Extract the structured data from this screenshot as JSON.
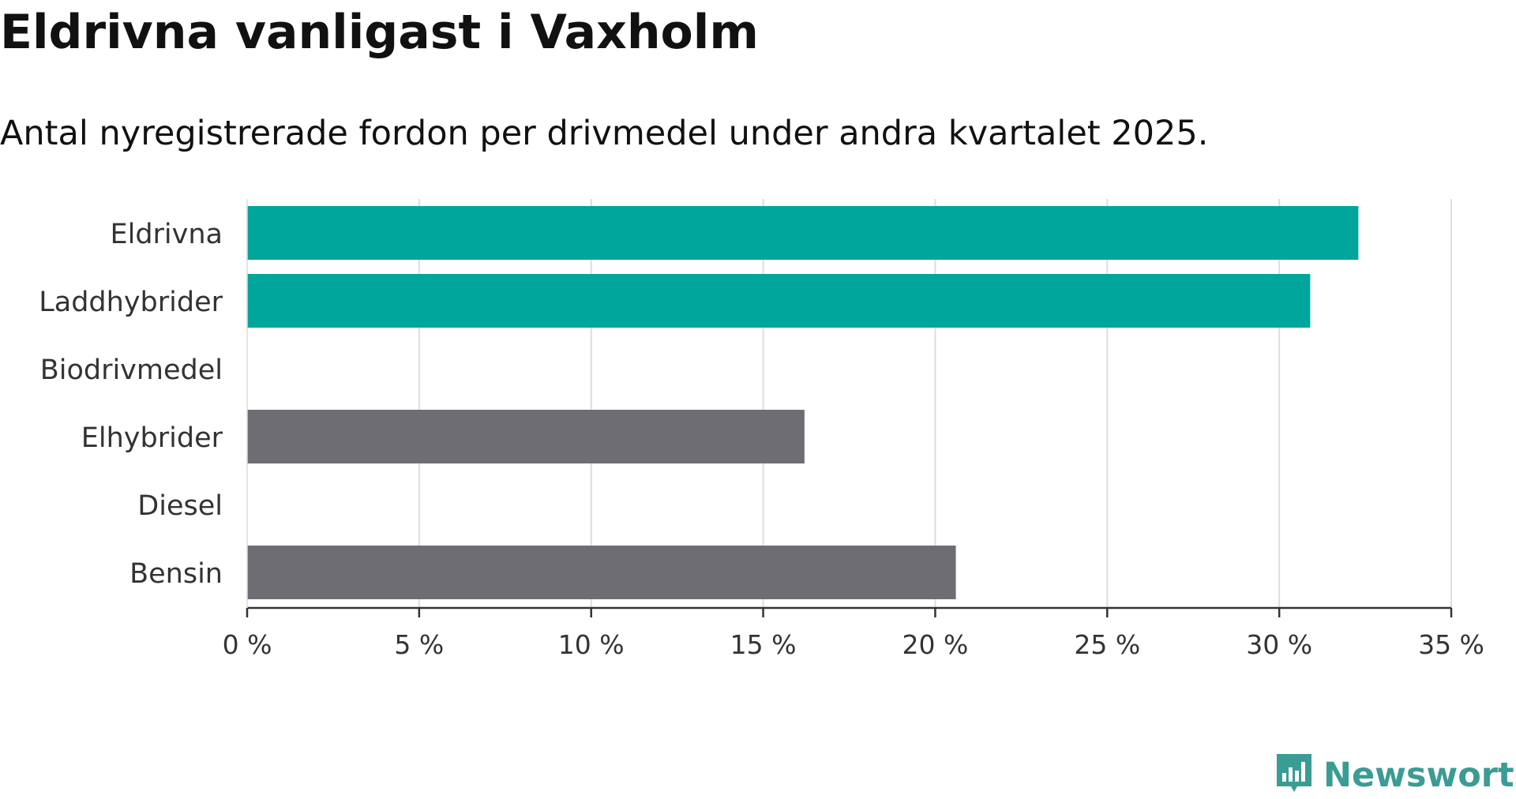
{
  "chart_data": {
    "type": "bar",
    "orientation": "horizontal",
    "title": "Eldrivna vanligast i Vaxholm",
    "subtitle": "Antal nyregistrerade fordon per drivmedel under andra kvartalet 2025.",
    "categories": [
      "Eldrivna",
      "Laddhybrider",
      "Biodrivmedel",
      "Elhybrider",
      "Diesel",
      "Bensin"
    ],
    "values": [
      32.3,
      30.9,
      0,
      16.2,
      0,
      20.6
    ],
    "bar_colors": [
      "#00a59b",
      "#00a59b",
      "#00a59b",
      "#6e6d73",
      "#6e6d73",
      "#6e6d73"
    ],
    "x_ticks": [
      0,
      5,
      10,
      15,
      20,
      25,
      30,
      35
    ],
    "tick_suffix": " %",
    "xlim": [
      0,
      35
    ],
    "grid": true,
    "xlabel": "",
    "ylabel": ""
  },
  "brand": {
    "name": "Newsworthy",
    "icon": "newsworthy-logo-icon",
    "color": "#3a9c94"
  }
}
